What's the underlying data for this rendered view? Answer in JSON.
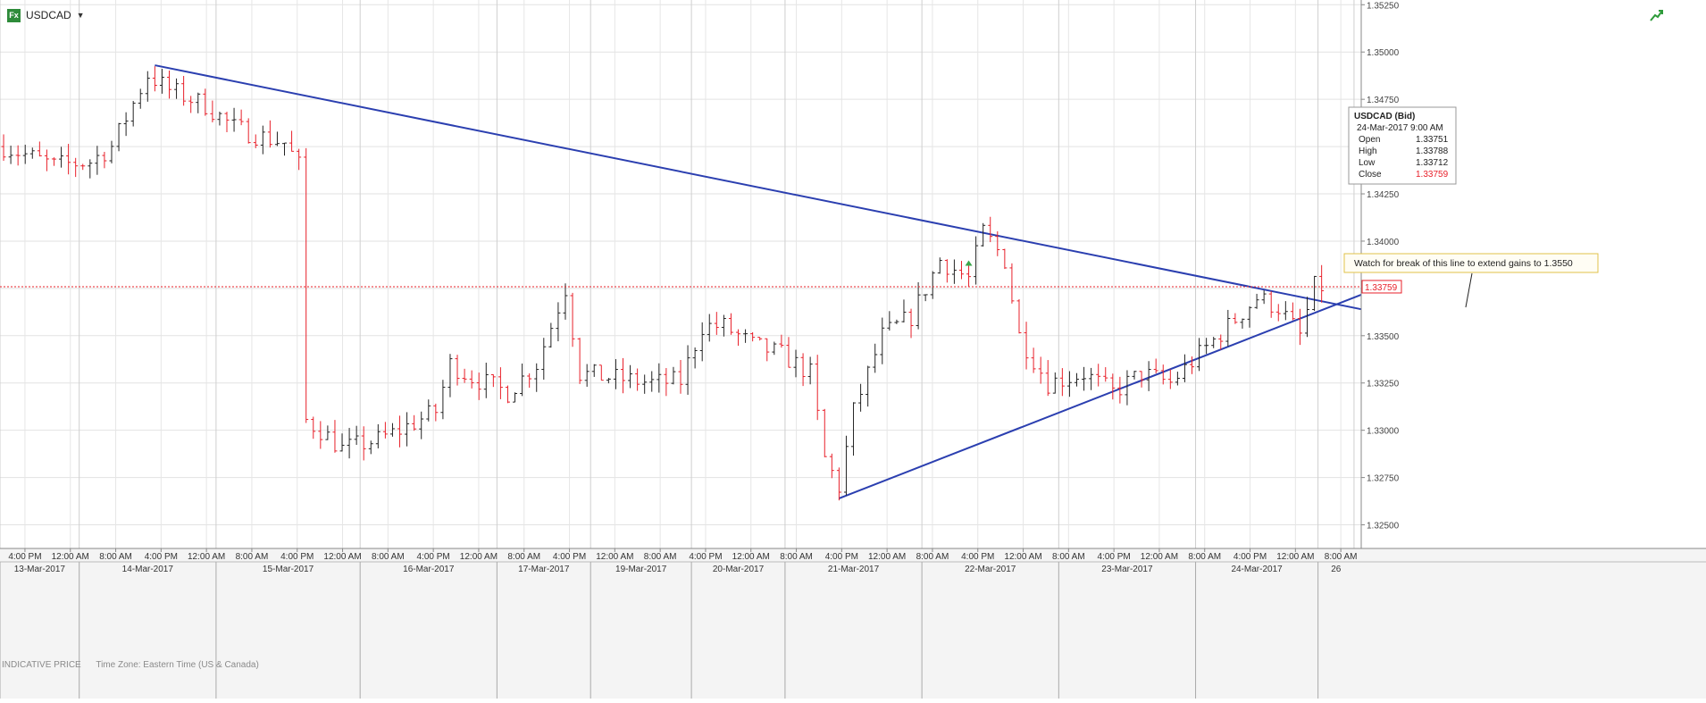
{
  "symbol": "USDCAD",
  "badge": "Fx",
  "indicative_label": "INDICATIVE PRICE",
  "timezone_label": "Time Zone: Eastern Time (US & Canada)",
  "tooltip": {
    "title": "USDCAD (Bid)",
    "datetime": "24-Mar-2017 9:00 AM",
    "rows": [
      {
        "label": "Open",
        "value": "1.33751"
      },
      {
        "label": "High",
        "value": "1.33788"
      },
      {
        "label": "Low",
        "value": "1.33712"
      },
      {
        "label": "Close",
        "value": "1.33759"
      }
    ]
  },
  "annotation": "Watch for break of this line to extend gains to 1.3550",
  "current_price": "1.33759",
  "colors": {
    "up": "#222222",
    "down": "#e8202a",
    "trend": "#2b3fb0",
    "price": "#e8202a",
    "note_border": "#e0c24a"
  },
  "chart_data": {
    "type": "candlestick",
    "symbol": "USDCAD",
    "ylim": [
      1.32375,
      1.35275
    ],
    "y_ticks": [
      "1.32500",
      "1.32750",
      "1.33000",
      "1.33250",
      "1.33500",
      "1.33750",
      "1.34000",
      "1.34250",
      "1.34500",
      "1.34750",
      "1.35000",
      "1.35250"
    ],
    "time_ticks": [
      "4:00 PM",
      "12:00 AM",
      "8:00 AM",
      "4:00 PM",
      "12:00 AM",
      "8:00 AM",
      "4:00 PM",
      "12:00 AM",
      "8:00 AM",
      "4:00 PM",
      "12:00 AM",
      "8:00 AM",
      "4:00 PM",
      "12:00 AM",
      "8:00 AM",
      "4:00 PM",
      "12:00 AM",
      "8:00 AM",
      "4:00 PM",
      "12:00 AM",
      "8:00 AM",
      "4:00 PM",
      "12:00 AM",
      "8:00 AM",
      "4:00 PM",
      "12:00 AM",
      "8:00 AM",
      "4:00 PM",
      "12:00 AM",
      "8:00 AM"
    ],
    "date_labels": [
      "13-Mar-2017",
      "14-Mar-2017",
      "15-Mar-2017",
      "16-Mar-2017",
      "17-Mar-2017",
      "19-Mar-2017",
      "20-Mar-2017",
      "21-Mar-2017",
      "22-Mar-2017",
      "23-Mar-2017",
      "24-Mar-2017",
      "26"
    ],
    "price_line": 1.33759,
    "trendlines": [
      {
        "name": "resistance",
        "from": {
          "t": 21,
          "p": 1.3493
        },
        "to": {
          "t": 182,
          "p": 1.3369
        }
      },
      {
        "name": "support",
        "from": {
          "t": 116,
          "p": 1.3264
        },
        "to": {
          "t": 182,
          "p": 1.3362
        }
      }
    ],
    "anchors": [
      [
        0,
        1.345
      ],
      [
        7,
        1.344
      ],
      [
        12,
        1.3442
      ],
      [
        15,
        1.345
      ],
      [
        20,
        1.3488
      ],
      [
        23,
        1.348
      ],
      [
        28,
        1.3472
      ],
      [
        32,
        1.346
      ],
      [
        36,
        1.3455
      ],
      [
        39,
        1.3452
      ],
      [
        41,
        1.344
      ],
      [
        42,
        1.3305
      ],
      [
        44,
        1.33
      ],
      [
        47,
        1.329
      ],
      [
        52,
        1.3295
      ],
      [
        55,
        1.33
      ],
      [
        60,
        1.331
      ],
      [
        62,
        1.3335
      ],
      [
        65,
        1.3328
      ],
      [
        70,
        1.332
      ],
      [
        74,
        1.3335
      ],
      [
        78,
        1.3375
      ],
      [
        80,
        1.333
      ],
      [
        84,
        1.3328
      ],
      [
        90,
        1.3325
      ],
      [
        94,
        1.3326
      ],
      [
        97,
        1.3355
      ],
      [
        100,
        1.3355
      ],
      [
        104,
        1.3345
      ],
      [
        108,
        1.334
      ],
      [
        112,
        1.333
      ],
      [
        114,
        1.3285
      ],
      [
        116,
        1.327
      ],
      [
        118,
        1.331
      ],
      [
        122,
        1.335
      ],
      [
        126,
        1.336
      ],
      [
        130,
        1.339
      ],
      [
        134,
        1.338
      ],
      [
        136,
        1.3405
      ],
      [
        139,
        1.339
      ],
      [
        141,
        1.335
      ],
      [
        145,
        1.3325
      ],
      [
        150,
        1.333
      ],
      [
        154,
        1.332
      ],
      [
        158,
        1.333
      ],
      [
        162,
        1.3325
      ],
      [
        166,
        1.334
      ],
      [
        170,
        1.3355
      ],
      [
        174,
        1.337
      ],
      [
        177,
        1.3365
      ],
      [
        180,
        1.335
      ],
      [
        182,
        1.33759
      ]
    ],
    "session_bars": [
      0,
      11,
      30,
      50,
      69,
      82,
      96,
      109,
      128,
      147,
      166,
      183,
      188
    ],
    "tooltip_bar": 182
  }
}
